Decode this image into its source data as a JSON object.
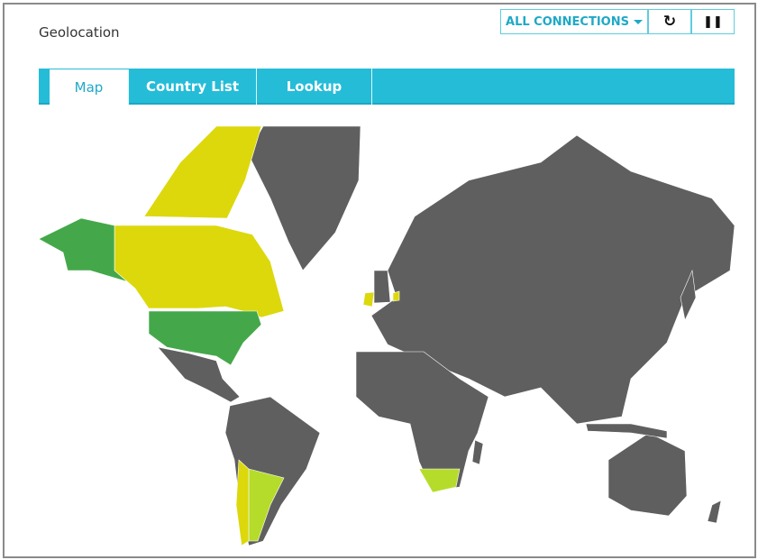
{
  "header": {
    "title": "Geolocation",
    "connections_label": "ALL CONNECTIONS",
    "refresh_icon": "refresh-icon",
    "pause_icon": "pause-icon"
  },
  "tabs": [
    {
      "label": "Map",
      "active": true
    },
    {
      "label": "Country List"
    },
    {
      "label": "Lookup"
    }
  ],
  "map": {
    "colors": {
      "default": "#5f5f5f",
      "high": "#dcd80c",
      "medium": "#44a84a",
      "low": "#b5dc2a"
    },
    "highlighted": {
      "Canada": "high",
      "Chile": "high",
      "Ireland": "high",
      "Netherlands": "high",
      "United States": "medium",
      "Argentina": "low",
      "South Africa": "low"
    }
  }
}
